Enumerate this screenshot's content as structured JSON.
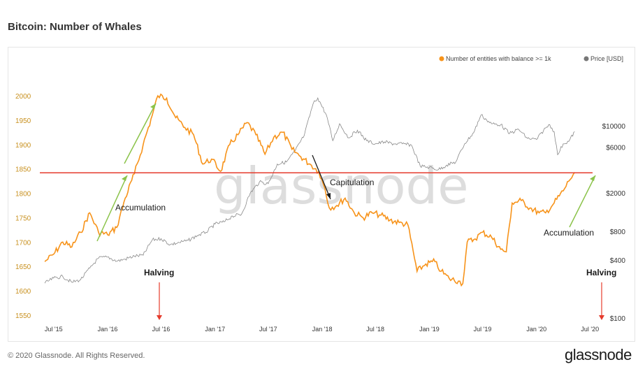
{
  "title": "Bitcoin: Number of Whales",
  "footer": {
    "copyright": "© 2020 Glassnode. All Rights Reserved.",
    "logo": "glassnode"
  },
  "watermark": "glassnode",
  "chart_data": {
    "type": "line",
    "series": [
      {
        "name": "Number of entities with balance >= 1k",
        "color": "#f7931a",
        "axis": "left",
        "points": [
          [
            "2015-06-01",
            1660
          ],
          [
            "2015-07-01",
            1675
          ],
          [
            "2015-08-01",
            1700
          ],
          [
            "2015-09-01",
            1690
          ],
          [
            "2015-10-01",
            1720
          ],
          [
            "2015-11-01",
            1760
          ],
          [
            "2015-12-01",
            1720
          ],
          [
            "2016-01-01",
            1715
          ],
          [
            "2016-02-01",
            1730
          ],
          [
            "2016-03-01",
            1790
          ],
          [
            "2016-04-01",
            1840
          ],
          [
            "2016-05-01",
            1900
          ],
          [
            "2016-06-01",
            1960
          ],
          [
            "2016-06-20",
            2000
          ],
          [
            "2016-07-20",
            1995
          ],
          [
            "2016-08-20",
            1955
          ],
          [
            "2016-09-20",
            1935
          ],
          [
            "2016-10-20",
            1920
          ],
          [
            "2016-11-20",
            1860
          ],
          [
            "2016-12-20",
            1870
          ],
          [
            "2017-01-20",
            1845
          ],
          [
            "2017-02-20",
            1900
          ],
          [
            "2017-03-20",
            1920
          ],
          [
            "2017-04-20",
            1945
          ],
          [
            "2017-05-20",
            1920
          ],
          [
            "2017-06-20",
            1880
          ],
          [
            "2017-07-20",
            1915
          ],
          [
            "2017-08-20",
            1925
          ],
          [
            "2017-09-20",
            1890
          ],
          [
            "2017-10-20",
            1875
          ],
          [
            "2017-11-20",
            1860
          ],
          [
            "2017-12-20",
            1845
          ],
          [
            "2018-01-10",
            1810
          ],
          [
            "2018-01-25",
            1770
          ],
          [
            "2018-02-20",
            1775
          ],
          [
            "2018-03-20",
            1790
          ],
          [
            "2018-04-20",
            1760
          ],
          [
            "2018-05-20",
            1750
          ],
          [
            "2018-06-20",
            1760
          ],
          [
            "2018-07-20",
            1755
          ],
          [
            "2018-08-20",
            1745
          ],
          [
            "2018-09-20",
            1740
          ],
          [
            "2018-10-20",
            1735
          ],
          [
            "2018-11-20",
            1640
          ],
          [
            "2018-12-20",
            1655
          ],
          [
            "2019-01-20",
            1660
          ],
          [
            "2019-02-10",
            1640
          ],
          [
            "2019-03-10",
            1625
          ],
          [
            "2019-04-10",
            1620
          ],
          [
            "2019-04-25",
            1615
          ],
          [
            "2019-05-10",
            1700
          ],
          [
            "2019-06-01",
            1705
          ],
          [
            "2019-07-01",
            1720
          ],
          [
            "2019-08-01",
            1710
          ],
          [
            "2019-09-01",
            1685
          ],
          [
            "2019-09-20",
            1680
          ],
          [
            "2019-10-10",
            1780
          ],
          [
            "2019-11-10",
            1785
          ],
          [
            "2019-12-10",
            1770
          ],
          [
            "2020-01-10",
            1760
          ],
          [
            "2020-02-01",
            1760
          ],
          [
            "2020-03-01",
            1780
          ],
          [
            "2020-04-01",
            1805
          ],
          [
            "2020-04-20",
            1825
          ],
          [
            "2020-05-10",
            1843
          ]
        ]
      },
      {
        "name": "Price [USD]",
        "color": "#888888",
        "axis": "right",
        "points": [
          [
            "2015-06-01",
            230
          ],
          [
            "2015-07-01",
            260
          ],
          [
            "2015-08-01",
            270
          ],
          [
            "2015-09-01",
            235
          ],
          [
            "2015-10-01",
            250
          ],
          [
            "2015-11-01",
            330
          ],
          [
            "2015-12-01",
            420
          ],
          [
            "2016-01-01",
            430
          ],
          [
            "2016-02-01",
            390
          ],
          [
            "2016-03-01",
            410
          ],
          [
            "2016-04-01",
            440
          ],
          [
            "2016-05-01",
            450
          ],
          [
            "2016-06-01",
            650
          ],
          [
            "2016-07-01",
            670
          ],
          [
            "2016-08-01",
            580
          ],
          [
            "2016-09-01",
            610
          ],
          [
            "2016-10-01",
            640
          ],
          [
            "2016-11-01",
            720
          ],
          [
            "2016-12-01",
            780
          ],
          [
            "2017-01-01",
            950
          ],
          [
            "2017-02-01",
            1000
          ],
          [
            "2017-03-01",
            1150
          ],
          [
            "2017-04-01",
            1200
          ],
          [
            "2017-05-01",
            2000
          ],
          [
            "2017-06-01",
            2600
          ],
          [
            "2017-07-01",
            2500
          ],
          [
            "2017-08-01",
            4000
          ],
          [
            "2017-09-01",
            4200
          ],
          [
            "2017-10-01",
            5500
          ],
          [
            "2017-11-01",
            8000
          ],
          [
            "2017-12-01",
            17000
          ],
          [
            "2017-12-17",
            19500
          ],
          [
            "2018-01-15",
            13000
          ],
          [
            "2018-02-06",
            7000
          ],
          [
            "2018-03-01",
            10500
          ],
          [
            "2018-04-01",
            7500
          ],
          [
            "2018-05-01",
            9000
          ],
          [
            "2018-06-01",
            7000
          ],
          [
            "2018-07-01",
            6500
          ],
          [
            "2018-08-01",
            6800
          ],
          [
            "2018-09-01",
            6500
          ],
          [
            "2018-10-01",
            6500
          ],
          [
            "2018-11-01",
            6300
          ],
          [
            "2018-12-01",
            3800
          ],
          [
            "2019-01-01",
            3700
          ],
          [
            "2019-02-01",
            3500
          ],
          [
            "2019-03-01",
            3900
          ],
          [
            "2019-04-01",
            4200
          ],
          [
            "2019-05-01",
            6500
          ],
          [
            "2019-06-01",
            8500
          ],
          [
            "2019-06-26",
            13000
          ],
          [
            "2019-07-15",
            11500
          ],
          [
            "2019-08-01",
            10500
          ],
          [
            "2019-09-01",
            10300
          ],
          [
            "2019-10-01",
            8300
          ],
          [
            "2019-11-01",
            9200
          ],
          [
            "2019-12-01",
            7400
          ],
          [
            "2020-01-01",
            7200
          ],
          [
            "2020-02-01",
            9500
          ],
          [
            "2020-02-15",
            10300
          ],
          [
            "2020-03-01",
            8700
          ],
          [
            "2020-03-13",
            5000
          ],
          [
            "2020-04-01",
            6500
          ],
          [
            "2020-04-20",
            6900
          ],
          [
            "2020-05-10",
            8700
          ]
        ]
      }
    ],
    "x_axis": {
      "range": [
        "2015-05-15",
        "2020-07-10"
      ],
      "ticks": [
        {
          "date": "2015-07-01",
          "label": "Jul '15"
        },
        {
          "date": "2016-01-01",
          "label": "Jan '16"
        },
        {
          "date": "2016-07-01",
          "label": "Jul '16"
        },
        {
          "date": "2017-01-01",
          "label": "Jan '17"
        },
        {
          "date": "2017-07-01",
          "label": "Jul '17"
        },
        {
          "date": "2018-01-01",
          "label": "Jan '18"
        },
        {
          "date": "2018-07-01",
          "label": "Jul '18"
        },
        {
          "date": "2019-01-01",
          "label": "Jan '19"
        },
        {
          "date": "2019-07-01",
          "label": "Jul '19"
        },
        {
          "date": "2020-01-01",
          "label": "Jan '20"
        },
        {
          "date": "2020-07-01",
          "label": "Jul '20"
        }
      ]
    },
    "y_left": {
      "range": [
        1540,
        2020
      ],
      "ticks": [
        1550,
        1600,
        1650,
        1700,
        1750,
        1800,
        1850,
        1900,
        1950,
        2000
      ]
    },
    "y_right": {
      "scale": "log",
      "range": [
        95,
        26000
      ],
      "ticks": [
        {
          "value": 100,
          "label": "$100"
        },
        {
          "value": 400,
          "label": "$400"
        },
        {
          "value": 800,
          "label": "$800"
        },
        {
          "value": 2000,
          "label": "$2000"
        },
        {
          "value": 6000,
          "label": "$6000"
        },
        {
          "value": 10000,
          "label": "$10000"
        }
      ]
    },
    "reference_line": {
      "value": 1842,
      "color": "#e53b2c"
    },
    "legend_position": "top-right",
    "annotations": {
      "accumulation": "Accumulation",
      "capitulation": "Capitulation",
      "halving": "Halving",
      "halving_dates": [
        "2016-07-09",
        "2020-05-11"
      ],
      "accent_green": "#8bc34a",
      "accent_red": "#e53b2c"
    }
  }
}
